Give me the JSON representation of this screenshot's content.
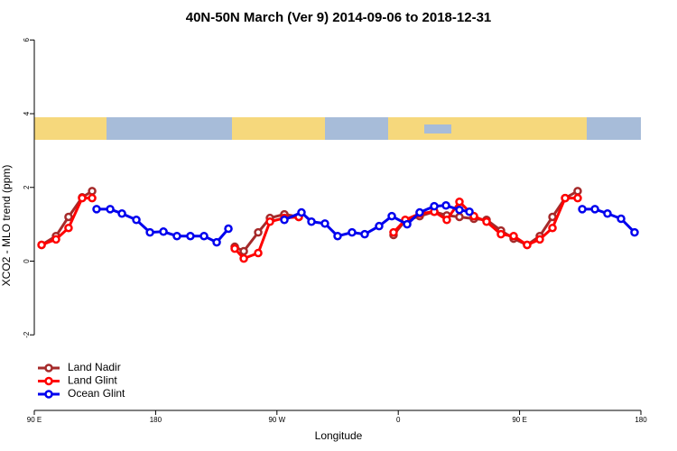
{
  "chart_data": {
    "type": "line",
    "title": "40N-50N March (Ver 9)   2014-09-06 to 2018-12-31",
    "x_label": "Longitude",
    "y_label": "XCO2 - MLO trend (ppm)",
    "xlim": [
      90,
      540
    ],
    "ylim": [
      -4.05,
      6.35
    ],
    "xticks": [
      {
        "value": 90,
        "label": "90 E"
      },
      180,
      {
        "value": 270,
        "label": "90 W"
      },
      {
        "value": 360,
        "label": "0"
      },
      {
        "value": 450,
        "label": "90 E"
      },
      {
        "value": 540,
        "label": "180"
      }
    ],
    "yticks": [
      -2,
      0,
      2,
      4,
      6
    ],
    "legend": "bottom-left",
    "series": [
      {
        "name": "Land Nadir",
        "color": "#a52a2a",
        "x": [
          95.4,
          106.1,
          115.4,
          125.5,
          132.9,
          null,
          238.7,
          245.4,
          256.1,
          264.8,
          275.5,
          286.2,
          null,
          356.5,
          365.2,
          375.9,
          386.7,
          396.0,
          405.4,
          416.1,
          425.5,
          436.2,
          445.6,
          455.6,
          465.0,
          474.4,
          483.8,
          493.1
        ],
        "values": [
          0.44,
          0.68,
          1.2,
          1.73,
          1.9,
          null,
          0.39,
          0.27,
          0.78,
          1.17,
          1.27,
          1.2,
          null,
          0.71,
          1.1,
          1.22,
          1.34,
          1.24,
          1.2,
          1.15,
          1.12,
          0.83,
          0.61,
          0.44,
          0.68,
          1.2,
          1.71,
          1.9
        ]
      },
      {
        "name": "Land Glint",
        "color": "#ff0000",
        "x": [
          95.4,
          106.1,
          115.4,
          125.5,
          132.9,
          null,
          238.7,
          245.4,
          256.1,
          264.8,
          275.5,
          286.2,
          null,
          356.5,
          365.2,
          375.9,
          386.7,
          396.0,
          405.4,
          416.1,
          425.5,
          436.2,
          445.6,
          455.6,
          465.0,
          474.4,
          483.8,
          493.1
        ],
        "values": [
          0.44,
          0.59,
          0.9,
          1.71,
          1.71,
          null,
          0.34,
          0.07,
          0.22,
          1.07,
          1.17,
          1.2,
          null,
          0.78,
          1.12,
          1.29,
          1.34,
          1.12,
          1.61,
          1.22,
          1.07,
          0.73,
          0.68,
          0.44,
          0.59,
          0.9,
          1.71,
          1.71
        ]
      },
      {
        "name": "Ocean Glint",
        "color": "#0000ee",
        "x": [
          136.2,
          146.3,
          155.0,
          165.7,
          175.8,
          185.8,
          195.8,
          205.8,
          215.9,
          225.3,
          234.0,
          null,
          275.5,
          288.2,
          295.6,
          305.6,
          315.0,
          325.7,
          335.1,
          345.8,
          355.2,
          366.6,
          375.9,
          386.7,
          395.4,
          405.4,
          412.8,
          null,
          496.5,
          505.9,
          515.2,
          525.3,
          535.3
        ],
        "values": [
          1.41,
          1.41,
          1.29,
          1.12,
          0.78,
          0.8,
          0.68,
          0.68,
          0.68,
          0.51,
          0.88,
          null,
          1.12,
          1.32,
          1.07,
          1.02,
          0.68,
          0.78,
          0.73,
          0.95,
          1.22,
          1.0,
          1.32,
          1.49,
          1.51,
          1.39,
          1.34,
          null,
          1.41,
          1.41,
          1.29,
          1.15,
          0.78
        ]
      }
    ]
  }
}
